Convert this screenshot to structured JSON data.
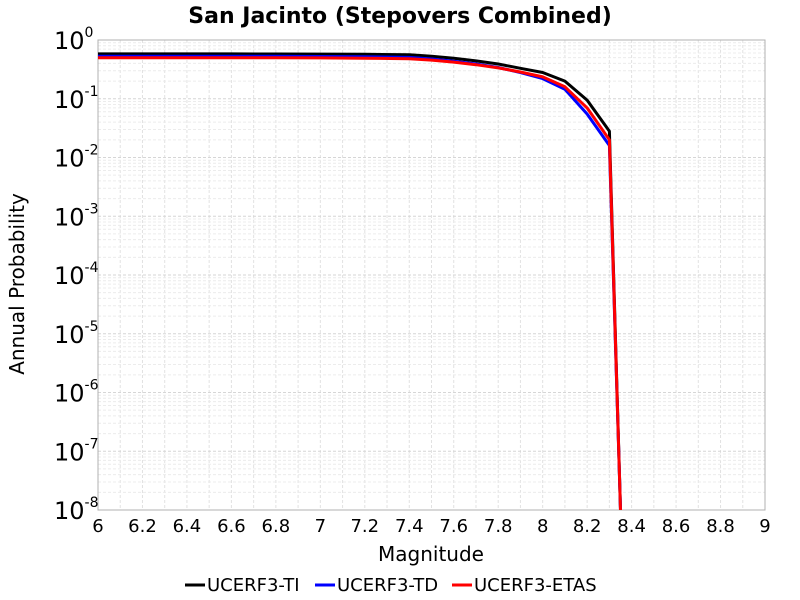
{
  "chart_data": {
    "type": "line",
    "title": "San Jacinto (Stepovers Combined)",
    "xlabel": "Magnitude",
    "ylabel": "Annual Probability",
    "xlim": [
      6,
      9
    ],
    "ylim": [
      1e-08,
      1
    ],
    "yscale": "log",
    "grid": true,
    "legend_position": "bottom",
    "x_ticks": [
      "6",
      "6.2",
      "6.4",
      "6.6",
      "6.8",
      "7",
      "7.2",
      "7.4",
      "7.6",
      "7.8",
      "8",
      "8.2",
      "8.4",
      "8.6",
      "8.8",
      "9"
    ],
    "y_ticks": [
      {
        "base": "10",
        "exp": "0"
      },
      {
        "base": "10",
        "exp": "-1"
      },
      {
        "base": "10",
        "exp": "-2"
      },
      {
        "base": "10",
        "exp": "-3"
      },
      {
        "base": "10",
        "exp": "-4"
      },
      {
        "base": "10",
        "exp": "-5"
      },
      {
        "base": "10",
        "exp": "-6"
      },
      {
        "base": "10",
        "exp": "-7"
      },
      {
        "base": "10",
        "exp": "-8"
      }
    ],
    "series": [
      {
        "name": "UCERF3-TI",
        "color": "#000000",
        "x": [
          6.0,
          6.2,
          6.4,
          6.6,
          6.8,
          7.0,
          7.2,
          7.4,
          7.5,
          7.6,
          7.7,
          7.8,
          7.9,
          8.0,
          8.1,
          8.2,
          8.3,
          8.35
        ],
        "y": [
          0.58,
          0.58,
          0.58,
          0.58,
          0.578,
          0.575,
          0.572,
          0.56,
          0.53,
          0.49,
          0.44,
          0.39,
          0.33,
          0.28,
          0.2,
          0.095,
          0.028,
          1e-08
        ]
      },
      {
        "name": "UCERF3-TD",
        "color": "#0000ff",
        "x": [
          6.0,
          6.2,
          6.4,
          6.6,
          6.8,
          7.0,
          7.2,
          7.4,
          7.5,
          7.6,
          7.7,
          7.8,
          7.9,
          8.0,
          8.1,
          8.2,
          8.3,
          8.35
        ],
        "y": [
          0.53,
          0.53,
          0.53,
          0.53,
          0.527,
          0.524,
          0.52,
          0.505,
          0.475,
          0.435,
          0.39,
          0.34,
          0.28,
          0.22,
          0.145,
          0.055,
          0.016,
          1e-08
        ]
      },
      {
        "name": "UCERF3-ETAS",
        "color": "#ff0000",
        "x": [
          6.0,
          6.2,
          6.4,
          6.6,
          6.8,
          7.0,
          7.2,
          7.4,
          7.5,
          7.6,
          7.7,
          7.8,
          7.9,
          8.0,
          8.1,
          8.2,
          8.3,
          8.35
        ],
        "y": [
          0.5,
          0.5,
          0.5,
          0.5,
          0.498,
          0.495,
          0.49,
          0.48,
          0.455,
          0.42,
          0.38,
          0.335,
          0.285,
          0.235,
          0.16,
          0.07,
          0.02,
          1e-08
        ]
      }
    ]
  }
}
